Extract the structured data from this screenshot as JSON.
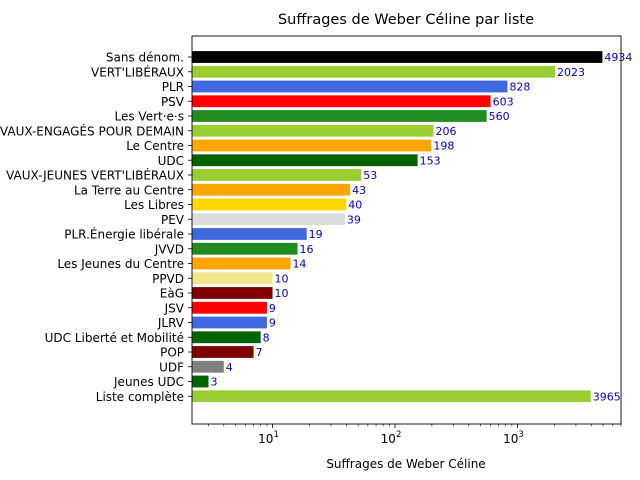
{
  "chart_data": {
    "type": "bar",
    "orientation": "horizontal",
    "title": "Suffrages de Weber Céline par liste",
    "xlabel": "Suffrages de Weber Céline",
    "ylabel": "",
    "x_scale": "log",
    "xlim": [
      2.2,
      7000
    ],
    "x_ticks": [
      {
        "value": 10,
        "base": "10",
        "exp": "1"
      },
      {
        "value": 100,
        "base": "10",
        "exp": "2"
      },
      {
        "value": 1000,
        "base": "10",
        "exp": "3"
      }
    ],
    "grid": false,
    "legend": "none",
    "label_color": "#0000cc",
    "categories": [
      "Sans dénom.",
      "VERT'LIBÉRAUX",
      "PLR",
      "PSV",
      "Les Vert·e·s",
      "VAUX-ENGAGÉS POUR DEMAIN",
      "Le Centre",
      "UDC",
      "VAUX-JEUNES VERT'LIBÉRAUX",
      "La Terre au Centre",
      "Les Libres",
      "PEV",
      "PLR.Énergie libérale",
      "JVVD",
      "Les Jeunes du Centre",
      "PPVD",
      "EàG",
      "JSV",
      "JLRV",
      "UDC Liberté et Mobilité",
      "POP",
      "UDF",
      "Jeunes UDC",
      "Liste complète"
    ],
    "values": [
      4934,
      2023,
      828,
      603,
      560,
      206,
      198,
      153,
      53,
      43,
      40,
      39,
      19,
      16,
      14,
      10,
      10,
      9,
      9,
      8,
      7,
      4,
      3,
      3965
    ],
    "value_labels": [
      "4934",
      "2023",
      "828",
      "603",
      "560",
      "206",
      "198",
      "153",
      "53",
      "43",
      "40",
      "39",
      "19",
      "16",
      "14",
      "10",
      "10",
      "9",
      "9",
      "8",
      "7",
      "4",
      "3",
      "3965"
    ],
    "colors": [
      "#000000",
      "#9acd32",
      "#4169e1",
      "#ff0000",
      "#228b22",
      "#9acd32",
      "#ffa500",
      "#006400",
      "#9acd32",
      "#ffa500",
      "#ffd700",
      "#dcdcdc",
      "#4169e1",
      "#228b22",
      "#ffa500",
      "#f0e68c",
      "#800000",
      "#ff0000",
      "#4169e1",
      "#006400",
      "#800000",
      "#808080",
      "#006400",
      "#9acd32"
    ]
  }
}
